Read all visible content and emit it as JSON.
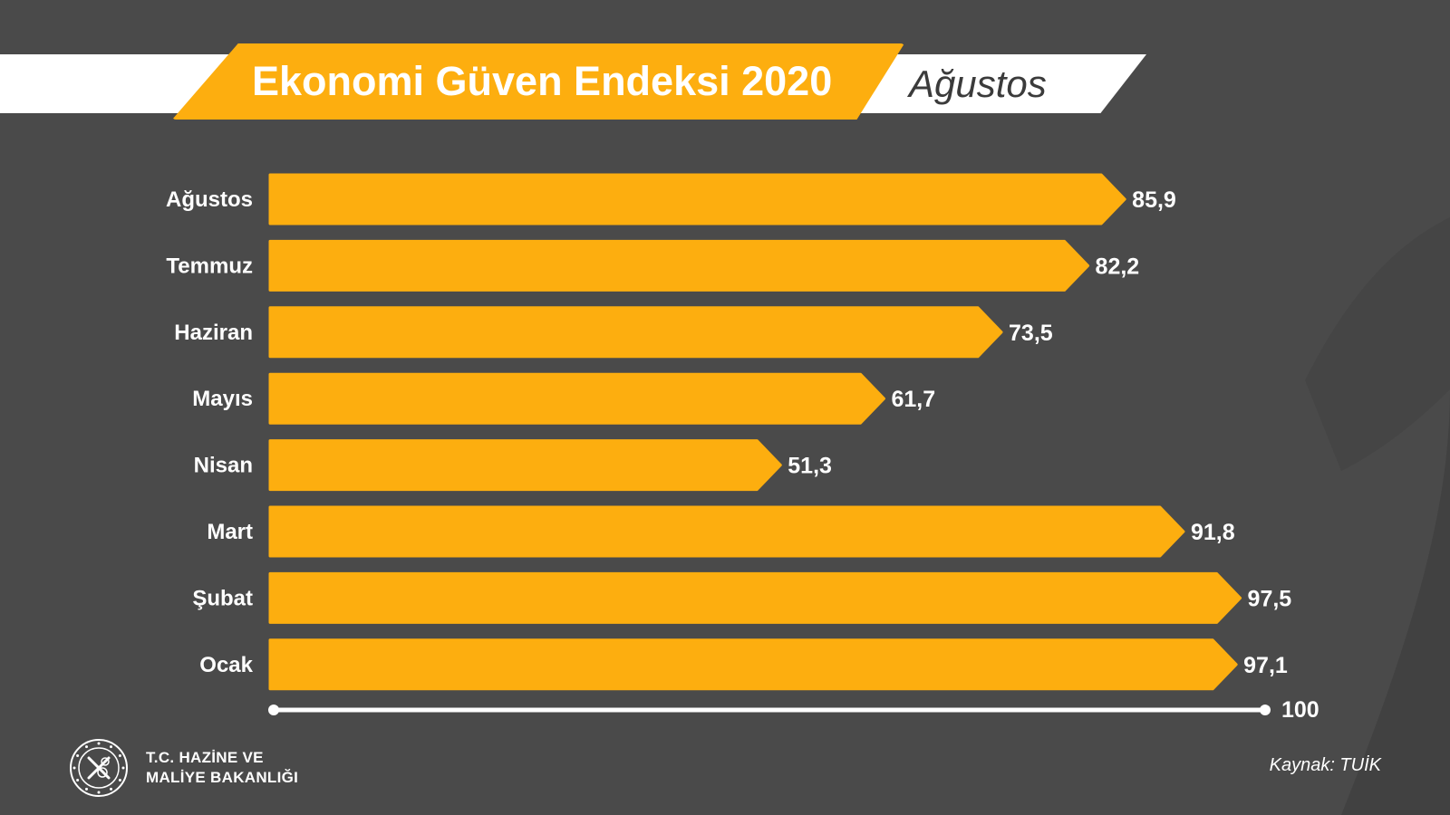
{
  "header": {
    "title": "Ekonomi Güven Endeksi 2020",
    "month": "Ağustos"
  },
  "chart_data": {
    "type": "bar",
    "orientation": "horizontal",
    "title": "Ekonomi Güven Endeksi 2020",
    "categories": [
      "Ağustos",
      "Temmuz",
      "Haziran",
      "Mayıs",
      "Nisan",
      "Mart",
      "Şubat",
      "Ocak"
    ],
    "values": [
      85.9,
      82.2,
      73.5,
      61.7,
      51.3,
      91.8,
      97.5,
      97.1
    ],
    "value_labels": [
      "85,9",
      "82,2",
      "73,5",
      "61,7",
      "51,3",
      "91,8",
      "97,5",
      "97,1"
    ],
    "xlim": [
      0,
      100
    ],
    "axis_end_label": "100",
    "grid": false,
    "legend": "none"
  },
  "footer": {
    "ministry_line1": "T.C. HAZİNE VE",
    "ministry_line2": "MALİYE BAKANLIĞI",
    "source": "Kaynak: TUİK"
  },
  "colors": {
    "background": "#4a4a4a",
    "accent": "#fdae0f",
    "text": "#ffffff"
  }
}
